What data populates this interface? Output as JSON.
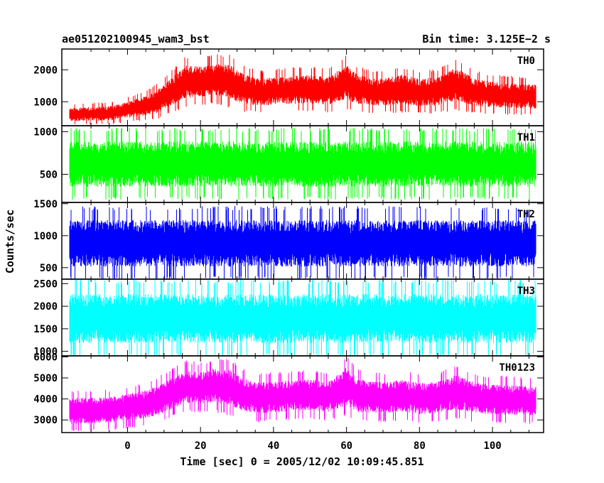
{
  "chart_data": {
    "type": "line",
    "title": "ae051202100945_wam3_bst",
    "bin_time": "Bin time: 3.125E−2 s",
    "xlabel": "Time [sec] 0 = 2005/12/02 10:09:45.851",
    "ylabel": "Counts/sec",
    "xlim": [
      -18,
      114
    ],
    "x_ticks": [
      0,
      20,
      40,
      60,
      80,
      100
    ],
    "panels": [
      {
        "name": "TH0",
        "color": "#ff0000",
        "ylim": [
          250,
          2650
        ],
        "y_ticks": [
          1000,
          2000
        ],
        "envelope_x": [
          -16,
          -5,
          0,
          5,
          8,
          12,
          16,
          20,
          24,
          28,
          32,
          36,
          40,
          45,
          50,
          55,
          60,
          63,
          66,
          70,
          75,
          80,
          85,
          90,
          95,
          100,
          105,
          112
        ],
        "envelope_lo": [
          300,
          320,
          400,
          450,
          500,
          700,
          900,
          950,
          1000,
          850,
          750,
          700,
          720,
          740,
          760,
          720,
          850,
          700,
          700,
          700,
          720,
          680,
          700,
          800,
          700,
          650,
          650,
          600
        ],
        "envelope_hi": [
          900,
          950,
          1100,
          1300,
          1500,
          1900,
          2350,
          2300,
          2400,
          2400,
          2050,
          1900,
          1950,
          2000,
          2050,
          1950,
          2400,
          2050,
          1950,
          1900,
          2050,
          1900,
          1950,
          2300,
          1900,
          1800,
          1750,
          1700
        ]
      },
      {
        "name": "TH1",
        "color": "#00ff00",
        "ylim": [
          170,
          1070
        ],
        "y_ticks": [
          500,
          1000
        ],
        "envelope_x": [
          -16,
          112
        ],
        "envelope_lo": [
          240,
          240
        ],
        "envelope_hi": [
          1000,
          1000
        ]
      },
      {
        "name": "TH2",
        "color": "#0000ff",
        "ylim": [
          320,
          1520
        ],
        "y_ticks": [
          500,
          1000,
          1500
        ],
        "envelope_x": [
          -16,
          112
        ],
        "envelope_lo": [
          360,
          360
        ],
        "envelope_hi": [
          1400,
          1400
        ]
      },
      {
        "name": "TH3",
        "color": "#00ffff",
        "ylim": [
          900,
          2600
        ],
        "y_ticks": [
          1000,
          1500,
          2000,
          2500
        ],
        "envelope_x": [
          -16,
          112
        ],
        "envelope_lo": [
          950,
          950
        ],
        "envelope_hi": [
          2500,
          2500
        ]
      },
      {
        "name": "TH0123",
        "color": "#ff00ff",
        "ylim": [
          2400,
          6050
        ],
        "y_ticks": [
          3000,
          4000,
          5000,
          6000
        ],
        "envelope_x": [
          -16,
          -5,
          0,
          5,
          8,
          12,
          16,
          20,
          24,
          28,
          32,
          36,
          40,
          45,
          50,
          55,
          60,
          63,
          66,
          70,
          75,
          80,
          85,
          90,
          95,
          100,
          105,
          112
        ],
        "envelope_lo": [
          2550,
          2600,
          2700,
          2800,
          2900,
          3200,
          3500,
          3450,
          3500,
          3300,
          3100,
          3000,
          3050,
          3100,
          3150,
          3050,
          3300,
          3050,
          3000,
          3000,
          3050,
          2950,
          3000,
          3150,
          3000,
          2950,
          2950,
          2900
        ],
        "envelope_hi": [
          4300,
          4350,
          4500,
          4700,
          4900,
          5300,
          5700,
          5600,
          5800,
          5750,
          5300,
          5100,
          5150,
          5200,
          5250,
          5150,
          5900,
          5300,
          5200,
          5100,
          5250,
          5100,
          5150,
          5500,
          5100,
          5000,
          4950,
          4900
        ]
      }
    ]
  }
}
